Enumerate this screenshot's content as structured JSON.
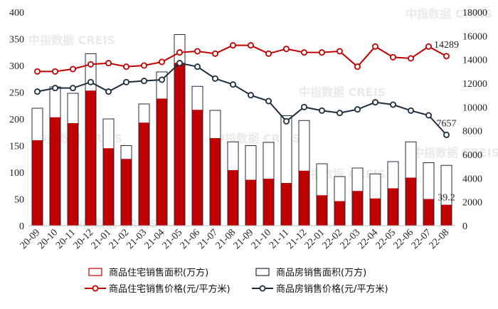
{
  "chart_data": {
    "type": "bar+line",
    "categories": [
      "20-09",
      "20-10",
      "20-11",
      "20-12",
      "21-01",
      "21-02",
      "21-03",
      "21-04",
      "21-05",
      "21-06",
      "21-07",
      "21-08",
      "21-09",
      "21-10",
      "21-11",
      "21-12",
      "22-01",
      "22-02",
      "22-03",
      "22-04",
      "22-05",
      "22-06",
      "22-07",
      "22-08"
    ],
    "left_axis": {
      "min": 0,
      "max": 400,
      "ticks": [
        0,
        50,
        100,
        150,
        200,
        250,
        300,
        350,
        400
      ]
    },
    "right_axis": {
      "min": 0,
      "max": 18000,
      "ticks": [
        0,
        2000,
        4000,
        6000,
        8000,
        10000,
        12000,
        14000,
        16000,
        18000
      ]
    },
    "series": [
      {
        "name": "商品住宅销售面积(万方)",
        "kind": "bar",
        "axis": "left",
        "color": "#c00000",
        "values": [
          160,
          203,
          192,
          253,
          145,
          125,
          193,
          238,
          305,
          217,
          164,
          104,
          86,
          88,
          80,
          103,
          57,
          46,
          65,
          51,
          70,
          90,
          50,
          39.2
        ]
      },
      {
        "name": "商品房销售面积(万方)",
        "kind": "bar",
        "axis": "left",
        "color": "#1f2d3d",
        "values": [
          220,
          260,
          248,
          322,
          200,
          150,
          228,
          288,
          358,
          261,
          216,
          157,
          150,
          156,
          206,
          197,
          116,
          92,
          108,
          97,
          120,
          157,
          118,
          113
        ]
      },
      {
        "name": "商品住宅销售价格(元/平方米)",
        "kind": "line",
        "axis": "right",
        "color": "#c00000",
        "values": [
          13000,
          13000,
          13200,
          13600,
          13700,
          13400,
          13500,
          13800,
          14600,
          14700,
          14500,
          15200,
          15200,
          14500,
          14900,
          14600,
          14600,
          14700,
          13400,
          15100,
          14200,
          14100,
          15100,
          14289
        ]
      },
      {
        "name": "商品房销售价格(元/平方米)",
        "kind": "line",
        "axis": "right",
        "color": "#1f2d3d",
        "values": [
          11300,
          11600,
          11600,
          12100,
          11300,
          12100,
          12200,
          12300,
          13700,
          13400,
          12400,
          11900,
          11000,
          10500,
          8800,
          10000,
          9700,
          9500,
          9800,
          10400,
          10200,
          9700,
          9300,
          7657
        ]
      }
    ],
    "data_labels": [
      {
        "series": 2,
        "index": 23,
        "text": "14289"
      },
      {
        "series": 3,
        "index": 23,
        "text": "7657"
      },
      {
        "series": 0,
        "index": 23,
        "text": "39.2"
      }
    ],
    "watermark": "中指数据 CREIS",
    "legend_position": "bottom",
    "grid": false
  }
}
